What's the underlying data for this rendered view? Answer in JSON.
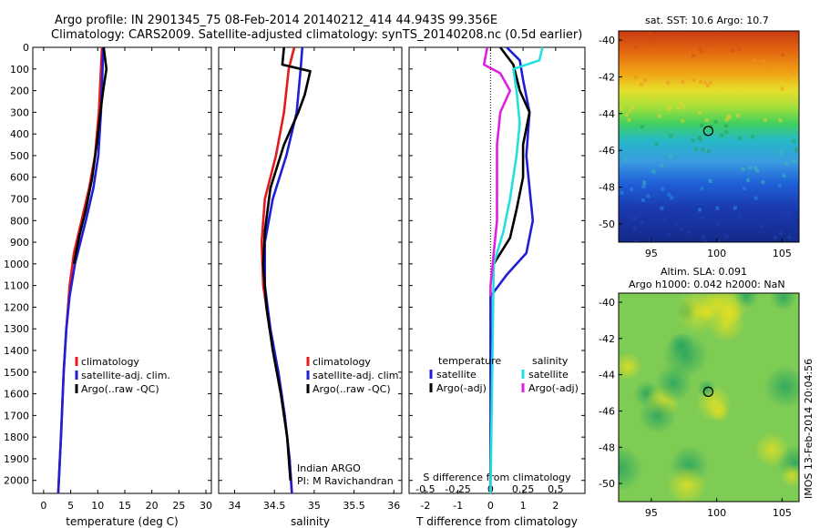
{
  "header": {
    "line1": "Argo profile: IN 2901345_75 08-Feb-2014 20140212_414 44.943S 99.356E",
    "line2": "Climatology: CARS2009. Satellite-adjusted climatology: synTS_20140208.nc (0.5d earlier)"
  },
  "colors": {
    "climatology": "#e41a1c",
    "satellite": "#1f1fd6",
    "argo": "#000000",
    "sat_salinity": "#22e0e0",
    "argo_adj_salinity": "#e020e0"
  },
  "chart_data": [
    {
      "type": "line",
      "name": "temperature-profile",
      "xlabel": "temperature (deg C)",
      "xlim": [
        -2,
        31
      ],
      "xticks": [
        0,
        5,
        10,
        15,
        20,
        25,
        30
      ],
      "ylim": [
        2060,
        0
      ],
      "yticks": [
        0,
        100,
        200,
        300,
        400,
        500,
        600,
        700,
        800,
        900,
        1000,
        1100,
        1200,
        1300,
        1400,
        1500,
        1600,
        1700,
        1800,
        1900,
        2000
      ],
      "legend": [
        "climatology",
        "satellite-adj. clim.",
        "Argo(..raw -QC)"
      ],
      "series": [
        {
          "name": "climatology",
          "color": "#e41a1c",
          "points": [
            [
              10.8,
              0
            ],
            [
              10.6,
              100
            ],
            [
              10.2,
              300
            ],
            [
              9.5,
              500
            ],
            [
              8.4,
              650
            ],
            [
              7.0,
              800
            ],
            [
              5.6,
              950
            ],
            [
              4.8,
              1100
            ],
            [
              4.2,
              1300
            ],
            [
              3.7,
              1500
            ],
            [
              3.2,
              1800
            ],
            [
              2.7,
              2060
            ]
          ]
        },
        {
          "name": "satellite-adj. clim.",
          "color": "#1f1fd6",
          "points": [
            [
              11.0,
              0
            ],
            [
              10.9,
              100
            ],
            [
              10.6,
              300
            ],
            [
              10.1,
              500
            ],
            [
              9.2,
              650
            ],
            [
              7.8,
              800
            ],
            [
              5.8,
              1000
            ],
            [
              4.8,
              1150
            ],
            [
              4.2,
              1300
            ],
            [
              3.7,
              1500
            ],
            [
              3.2,
              1800
            ],
            [
              2.7,
              2060
            ]
          ]
        },
        {
          "name": "Argo(..raw -QC)",
          "color": "#000000",
          "points": [
            [
              11.1,
              0
            ],
            [
              11.6,
              100
            ],
            [
              11.0,
              200
            ],
            [
              10.5,
              300
            ],
            [
              9.8,
              450
            ],
            [
              9.0,
              600
            ],
            [
              7.8,
              750
            ],
            [
              6.6,
              870
            ],
            [
              5.6,
              1000
            ]
          ]
        }
      ]
    },
    {
      "type": "line",
      "name": "salinity-profile",
      "xlabel": "salinity",
      "xlim": [
        33.8,
        36.1
      ],
      "xticks": [
        34,
        34.5,
        35,
        35.5,
        36
      ],
      "ylim": [
        2060,
        0
      ],
      "legend": [
        "climatology",
        "satellite-adj. clim.",
        "Argo(..raw -QC)"
      ],
      "annotation": [
        "Indian ARGO",
        "PI: M Ravichandran"
      ],
      "series": [
        {
          "name": "climatology",
          "color": "#e41a1c",
          "points": [
            [
              34.75,
              0
            ],
            [
              34.68,
              100
            ],
            [
              34.62,
              300
            ],
            [
              34.52,
              500
            ],
            [
              34.38,
              700
            ],
            [
              34.34,
              900
            ],
            [
              34.36,
              1100
            ],
            [
              34.44,
              1300
            ],
            [
              34.55,
              1500
            ],
            [
              34.63,
              1700
            ],
            [
              34.69,
              1900
            ],
            [
              34.72,
              2060
            ]
          ]
        },
        {
          "name": "satellite-adj. clim.",
          "color": "#1f1fd6",
          "points": [
            [
              34.85,
              0
            ],
            [
              34.83,
              100
            ],
            [
              34.78,
              300
            ],
            [
              34.65,
              500
            ],
            [
              34.48,
              700
            ],
            [
              34.38,
              900
            ],
            [
              34.38,
              1100
            ],
            [
              34.45,
              1300
            ],
            [
              34.55,
              1500
            ],
            [
              34.63,
              1700
            ],
            [
              34.69,
              1900
            ],
            [
              34.72,
              2060
            ]
          ]
        },
        {
          "name": "Argo(..raw -QC)",
          "color": "#000000",
          "points": [
            [
              34.62,
              0
            ],
            [
              34.6,
              80
            ],
            [
              34.95,
              110
            ],
            [
              34.88,
              220
            ],
            [
              34.8,
              300
            ],
            [
              34.62,
              450
            ],
            [
              34.45,
              650
            ],
            [
              34.38,
              850
            ],
            [
              34.36,
              1000
            ],
            [
              34.4,
              1200
            ],
            [
              34.48,
              1400
            ],
            [
              34.58,
              1600
            ],
            [
              34.66,
              1800
            ],
            [
              34.7,
              2000
            ]
          ]
        }
      ]
    },
    {
      "type": "line",
      "name": "difference-profile",
      "xlabel": "T difference from climatology",
      "xlabel2": "S difference from climatology",
      "xlim": [
        -2.5,
        2.9
      ],
      "xticks": [
        -2,
        -1,
        0,
        1,
        2
      ],
      "xticks2": [
        "-0.5",
        "-0.25",
        "0",
        "0.25",
        "0.5"
      ],
      "ylim": [
        2060,
        0
      ],
      "legend_headers": [
        "temperature",
        "salinity"
      ],
      "legend": [
        "satellite",
        "Argo(-adj)",
        "satellite",
        "Argo(-adj)"
      ],
      "series": [
        {
          "name": "satellite",
          "color": "#1f1fd6",
          "points": [
            [
              0.5,
              0
            ],
            [
              0.9,
              60
            ],
            [
              1.0,
              150
            ],
            [
              1.2,
              300
            ],
            [
              1.1,
              500
            ],
            [
              1.2,
              650
            ],
            [
              1.3,
              800
            ],
            [
              1.1,
              950
            ],
            [
              0.5,
              1050
            ],
            [
              0.0,
              1150
            ],
            [
              0.0,
              2060
            ]
          ]
        },
        {
          "name": "Argo(-adj)",
          "color": "#000000",
          "points": [
            [
              0.3,
              0
            ],
            [
              0.7,
              80
            ],
            [
              0.9,
              200
            ],
            [
              1.2,
              300
            ],
            [
              1.0,
              450
            ],
            [
              1.0,
              600
            ],
            [
              0.8,
              750
            ],
            [
              0.6,
              880
            ],
            [
              0.1,
              1000
            ]
          ]
        },
        {
          "name": "satellite",
          "color": "#22e0e0",
          "points": [
            [
              1.6,
              0
            ],
            [
              1.5,
              60
            ],
            [
              0.7,
              100
            ],
            [
              0.8,
              200
            ],
            [
              0.9,
              350
            ],
            [
              0.8,
              500
            ],
            [
              0.6,
              700
            ],
            [
              0.4,
              850
            ],
            [
              0.1,
              1000
            ],
            [
              0.0,
              2060
            ]
          ]
        },
        {
          "name": "Argo(-adj)",
          "color": "#e020e0",
          "points": [
            [
              -0.1,
              0
            ],
            [
              -0.2,
              80
            ],
            [
              0.3,
              120
            ],
            [
              0.6,
              200
            ],
            [
              0.3,
              300
            ],
            [
              0.2,
              450
            ],
            [
              0.2,
              600
            ],
            [
              0.2,
              800
            ],
            [
              0.1,
              950
            ],
            [
              0.0,
              1100
            ],
            [
              0.0,
              1150
            ]
          ]
        }
      ]
    },
    {
      "type": "heatmap",
      "name": "sst-map",
      "title": "sat. SST: 10.6  Argo: 10.7",
      "xlim": [
        92.5,
        106.3
      ],
      "ylim": [
        -51,
        -39.5
      ],
      "xticks": [
        95,
        100,
        105
      ],
      "yticks": [
        -40,
        -42,
        -44,
        -46,
        -48,
        -50
      ],
      "marker": [
        99.356,
        -44.943
      ]
    },
    {
      "type": "heatmap",
      "name": "sla-map",
      "title": "Altim. SLA: 0.091",
      "subtitle": "Argo h1000: 0.042 h2000: NaN",
      "xlim": [
        92.5,
        106.3
      ],
      "ylim": [
        -51,
        -39.5
      ],
      "xticks": [
        95,
        100,
        105
      ],
      "yticks": [
        -40,
        -42,
        -44,
        -46,
        -48,
        -50
      ],
      "marker": [
        99.356,
        -44.943
      ]
    }
  ],
  "footer": {
    "stamp": "IMOS 13-Feb-2014 20:04:56"
  }
}
